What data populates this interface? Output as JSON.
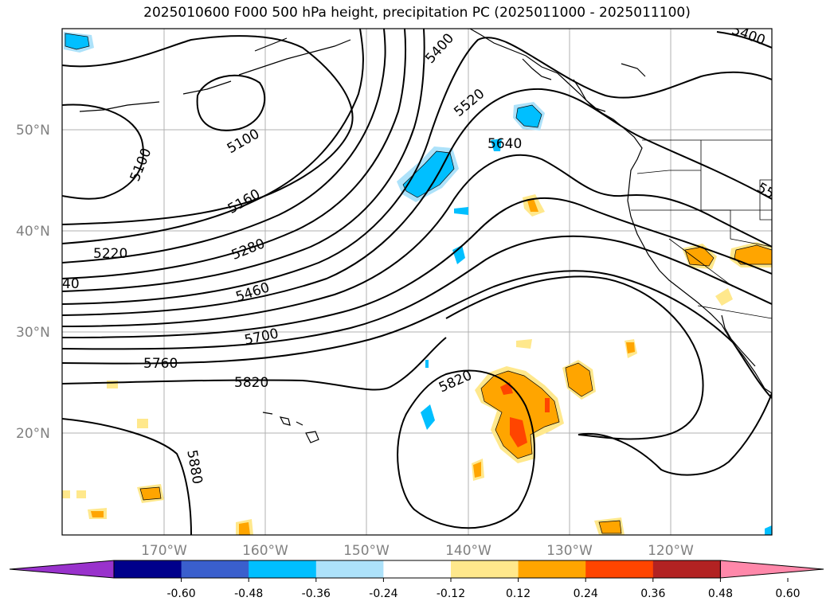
{
  "title": "2025010600 F000 500 hPa height, precipitation PC (2025011000 - 2025011100)",
  "lat_labels": [
    "50°N",
    "40°N",
    "30°N",
    "20°N"
  ],
  "lon_labels": [
    "170°W",
    "160°W",
    "150°W",
    "140°W",
    "130°W",
    "120°W"
  ],
  "contour_labels": [
    "5100",
    "5100",
    "5160",
    "5220",
    "5280",
    "5460",
    "5700",
    "5760",
    "5820",
    "5820",
    "5880",
    "5400",
    "5520",
    "5640",
    "5400",
    "40",
    "55"
  ],
  "colorbar": {
    "ticks": [
      "-0.60",
      "-0.48",
      "-0.36",
      "-0.24",
      "-0.12",
      "0.12",
      "0.24",
      "0.36",
      "0.48",
      "0.60"
    ],
    "colors": [
      "#9932CC",
      "#00008B",
      "#3A5FCD",
      "#00BFFF",
      "#ADE2FA",
      "#FFFFFF",
      "#FFE88C",
      "#FFA500",
      "#FF4500",
      "#B22222",
      "#FF88AA"
    ]
  }
}
